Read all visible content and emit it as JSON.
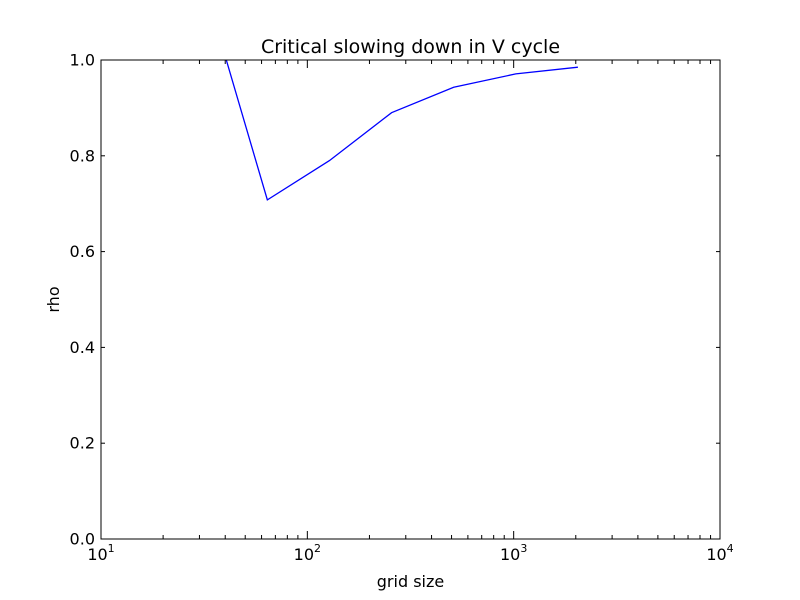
{
  "chart_data": {
    "type": "line",
    "title": "Critical slowing down in V cycle",
    "xlabel": "grid size",
    "ylabel": "rho",
    "xscale": "log",
    "xlim": [
      10,
      10000
    ],
    "ylim": [
      0.0,
      1.0
    ],
    "grid": false,
    "line_color": "#0000ff",
    "x_ticks": [
      {
        "value": 10,
        "base": "10",
        "exp": "1"
      },
      {
        "value": 100,
        "base": "10",
        "exp": "2"
      },
      {
        "value": 1000,
        "base": "10",
        "exp": "3"
      },
      {
        "value": 10000,
        "base": "10",
        "exp": "4"
      }
    ],
    "y_ticks": [
      {
        "value": 0.0,
        "label": "0.0"
      },
      {
        "value": 0.2,
        "label": "0.2"
      },
      {
        "value": 0.4,
        "label": "0.4"
      },
      {
        "value": 0.6,
        "label": "0.6"
      },
      {
        "value": 0.8,
        "label": "0.8"
      },
      {
        "value": 1.0,
        "label": "1.0"
      }
    ],
    "series": [
      {
        "x": [
          32,
          64,
          128,
          256,
          512,
          1024,
          2048
        ],
        "y": [
          1.15,
          0.708,
          0.79,
          0.89,
          0.943,
          0.971,
          0.985
        ]
      }
    ]
  }
}
